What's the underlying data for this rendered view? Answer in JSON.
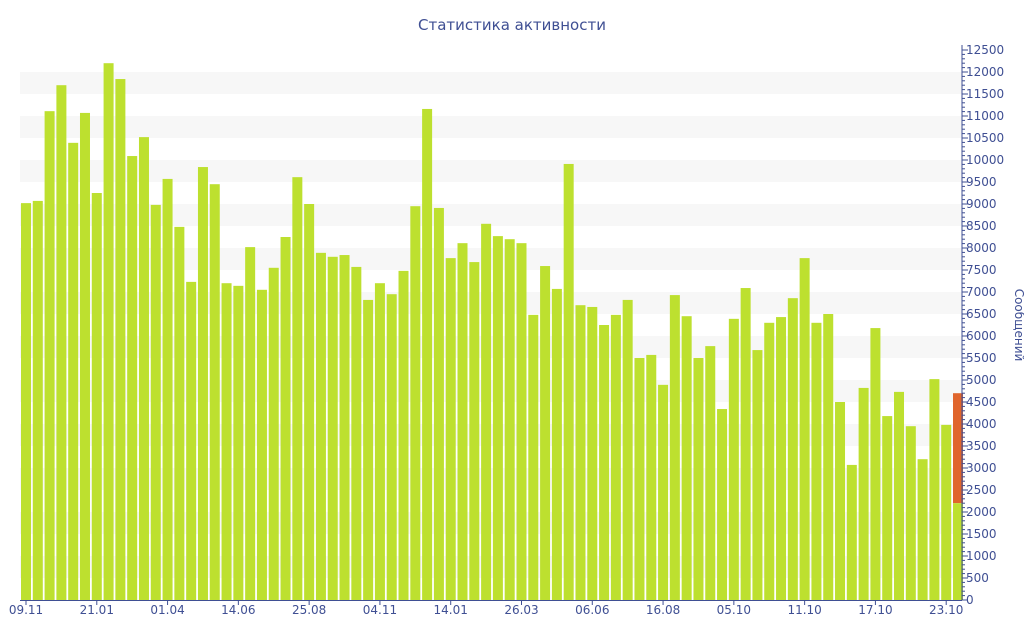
{
  "chart_data": {
    "type": "bar",
    "title": "Статистика активности",
    "xlabel": "",
    "ylabel": "Сообщений",
    "ylim": [
      0,
      12500
    ],
    "ytick_step": 500,
    "grid": "alternating horizontal bands",
    "colors": {
      "bar": "#bde02f",
      "highlight": "#e0652c",
      "axis": "#3f4f93",
      "band": "#f7f7f7"
    },
    "tick_labels": [
      "09.11",
      "21.01",
      "01.04",
      "14.06",
      "25.08",
      "04.11",
      "14.01",
      "26.03",
      "06.06",
      "16.08",
      "05.10",
      "11.10",
      "17.10",
      "23.10"
    ],
    "tick_every": 6,
    "values": [
      9020,
      9070,
      11110,
      11700,
      10390,
      11070,
      9250,
      12200,
      11840,
      10090,
      10520,
      8980,
      9570,
      8480,
      7230,
      9840,
      9450,
      7200,
      7140,
      8020,
      7050,
      7550,
      8250,
      9610,
      9000,
      7890,
      7800,
      7840,
      7570,
      6820,
      7200,
      6950,
      7480,
      8950,
      11160,
      8910,
      7770,
      8110,
      7680,
      8550,
      8270,
      8200,
      8110,
      6480,
      7590,
      7070,
      9910,
      6700,
      6660,
      6250,
      6480,
      6820,
      5500,
      5570,
      4890,
      6930,
      6450,
      5500,
      5770,
      4340,
      6390,
      7090,
      5680,
      6300,
      6430,
      6860,
      7770,
      6300,
      6500,
      4500,
      3070,
      4820,
      6180,
      4180,
      4730,
      3950,
      3200,
      5020,
      3980,
      4700
    ],
    "last_bar_split": {
      "base": 2200,
      "highlight_total": 4700
    }
  }
}
